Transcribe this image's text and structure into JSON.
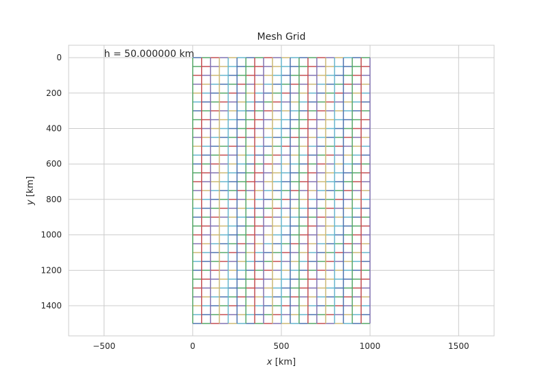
{
  "chart_data": {
    "type": "line",
    "title": "Mesh Grid",
    "xlabel_var": "x",
    "xlabel_unit": " [km]",
    "ylabel_var": "y",
    "ylabel_unit": " [km]",
    "annotation": "h = 50.000000 km",
    "annotation_at": [
      -500,
      0
    ],
    "xlim": [
      -700,
      1700
    ],
    "ylim": [
      1570,
      -70
    ],
    "y_inverted": true,
    "grid": true,
    "x_ticks": [
      -500,
      0,
      500,
      1000,
      1500
    ],
    "y_ticks": [
      0,
      200,
      400,
      600,
      800,
      1000,
      1200,
      1400
    ],
    "mesh": {
      "x_range": [
        0,
        1000
      ],
      "y_range": [
        0,
        1500
      ],
      "spacing": 50
    },
    "line_colors": [
      "#4C72B0",
      "#55A868",
      "#C44E52",
      "#8172B2",
      "#CCB974",
      "#64B5CD"
    ]
  }
}
